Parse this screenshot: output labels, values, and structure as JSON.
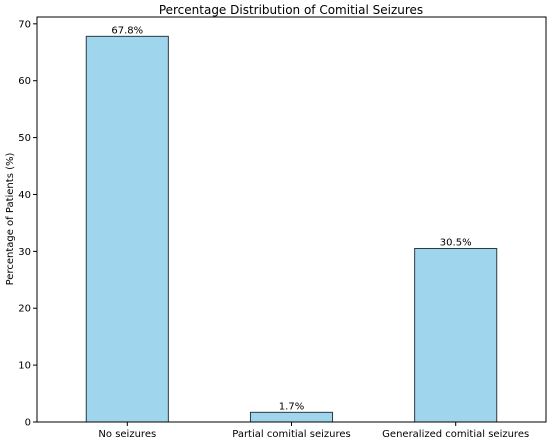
{
  "chart_data": {
    "type": "bar",
    "title": "Percentage Distribution of Comitial Seizures",
    "xlabel": "",
    "ylabel": "Percentage of Patients (%)",
    "categories": [
      "No seizures",
      "Partial comitial seizures",
      "Generalized comitial seizures"
    ],
    "values": [
      67.8,
      1.7,
      30.5
    ],
    "data_labels": [
      "67.8%",
      "1.7%",
      "30.5%"
    ],
    "ylim": [
      0,
      71.2
    ],
    "yticks": [
      0,
      10,
      20,
      30,
      40,
      50,
      60,
      70
    ],
    "grid": false,
    "legend": "none",
    "bar_color": "#a0d6ed",
    "edge_color": "#2b3a42"
  }
}
